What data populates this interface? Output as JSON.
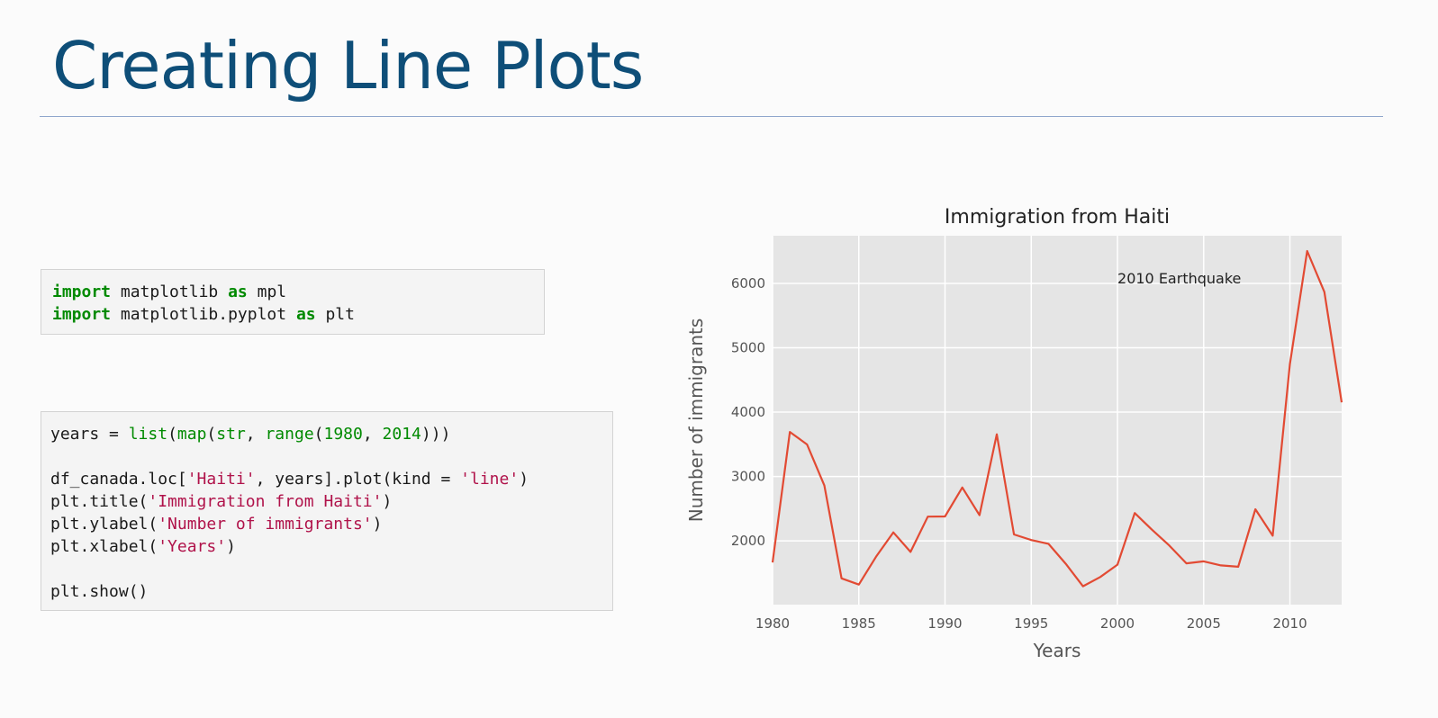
{
  "slide": {
    "title": "Creating Line Plots"
  },
  "code_cell_1": {
    "lines": [
      [
        {
          "t": "import",
          "c": "kw"
        },
        {
          "t": " matplotlib ",
          "c": ""
        },
        {
          "t": "as",
          "c": "kw"
        },
        {
          "t": " mpl",
          "c": ""
        }
      ],
      [
        {
          "t": "import",
          "c": "kw"
        },
        {
          "t": " matplotlib.pyplot ",
          "c": ""
        },
        {
          "t": "as",
          "c": "kw"
        },
        {
          "t": " plt",
          "c": ""
        }
      ]
    ]
  },
  "code_cell_2": {
    "lines": [
      [
        {
          "t": "years = ",
          "c": ""
        },
        {
          "t": "list",
          "c": "bi"
        },
        {
          "t": "(",
          "c": ""
        },
        {
          "t": "map",
          "c": "bi"
        },
        {
          "t": "(",
          "c": ""
        },
        {
          "t": "str",
          "c": "bi"
        },
        {
          "t": ", ",
          "c": ""
        },
        {
          "t": "range",
          "c": "bi"
        },
        {
          "t": "(",
          "c": ""
        },
        {
          "t": "1980",
          "c": "num"
        },
        {
          "t": ", ",
          "c": ""
        },
        {
          "t": "2014",
          "c": "num"
        },
        {
          "t": ")))",
          "c": ""
        }
      ],
      [],
      [
        {
          "t": "df_canada.loc[",
          "c": ""
        },
        {
          "t": "'Haiti'",
          "c": "str"
        },
        {
          "t": ", years].plot(kind = ",
          "c": ""
        },
        {
          "t": "'line'",
          "c": "str"
        },
        {
          "t": ")",
          "c": ""
        }
      ],
      [
        {
          "t": "plt.title(",
          "c": ""
        },
        {
          "t": "'Immigration from Haiti'",
          "c": "str"
        },
        {
          "t": ")",
          "c": ""
        }
      ],
      [
        {
          "t": "plt.ylabel(",
          "c": ""
        },
        {
          "t": "'Number of immigrants'",
          "c": "str"
        },
        {
          "t": ")",
          "c": ""
        }
      ],
      [
        {
          "t": "plt.xlabel(",
          "c": ""
        },
        {
          "t": "'Years'",
          "c": "str"
        },
        {
          "t": ")",
          "c": ""
        }
      ],
      [],
      [
        {
          "t": "plt.show()",
          "c": ""
        }
      ]
    ]
  },
  "chart_data": {
    "type": "line",
    "title": "Immigration from Haiti",
    "xlabel": "Years",
    "ylabel": "Number of immigrants",
    "annotation": {
      "text": "2010 Earthquake",
      "x": 2000,
      "y": 6000
    },
    "x": [
      1980,
      1981,
      1982,
      1983,
      1984,
      1985,
      1986,
      1987,
      1988,
      1989,
      1990,
      1991,
      1992,
      1993,
      1994,
      1995,
      1996,
      1997,
      1998,
      1999,
      2000,
      2001,
      2002,
      2003,
      2004,
      2005,
      2006,
      2007,
      2008,
      2009,
      2010,
      2011,
      2012,
      2013
    ],
    "series": [
      {
        "values": [
          1666,
          3692,
          3498,
          2860,
          1418,
          1321,
          1753,
          2132,
          1829,
          2377,
          2379,
          2829,
          2399,
          3655,
          2100,
          2014,
          1955,
          1645,
          1295,
          1439,
          1631,
          2433,
          2174,
          1930,
          1652,
          1682,
          1619,
          1598,
          2491,
          2080,
          4744,
          6503,
          5868,
          4152
        ],
        "color": "#e24a33"
      }
    ],
    "xlim": [
      1980,
      2013
    ],
    "ylim": [
      1010,
      6740
    ],
    "xticks": [
      1980,
      1985,
      1990,
      1995,
      2000,
      2005,
      2010
    ],
    "yticks": [
      2000,
      3000,
      4000,
      5000,
      6000
    ],
    "grid": true,
    "background": "#e5e5e5"
  }
}
